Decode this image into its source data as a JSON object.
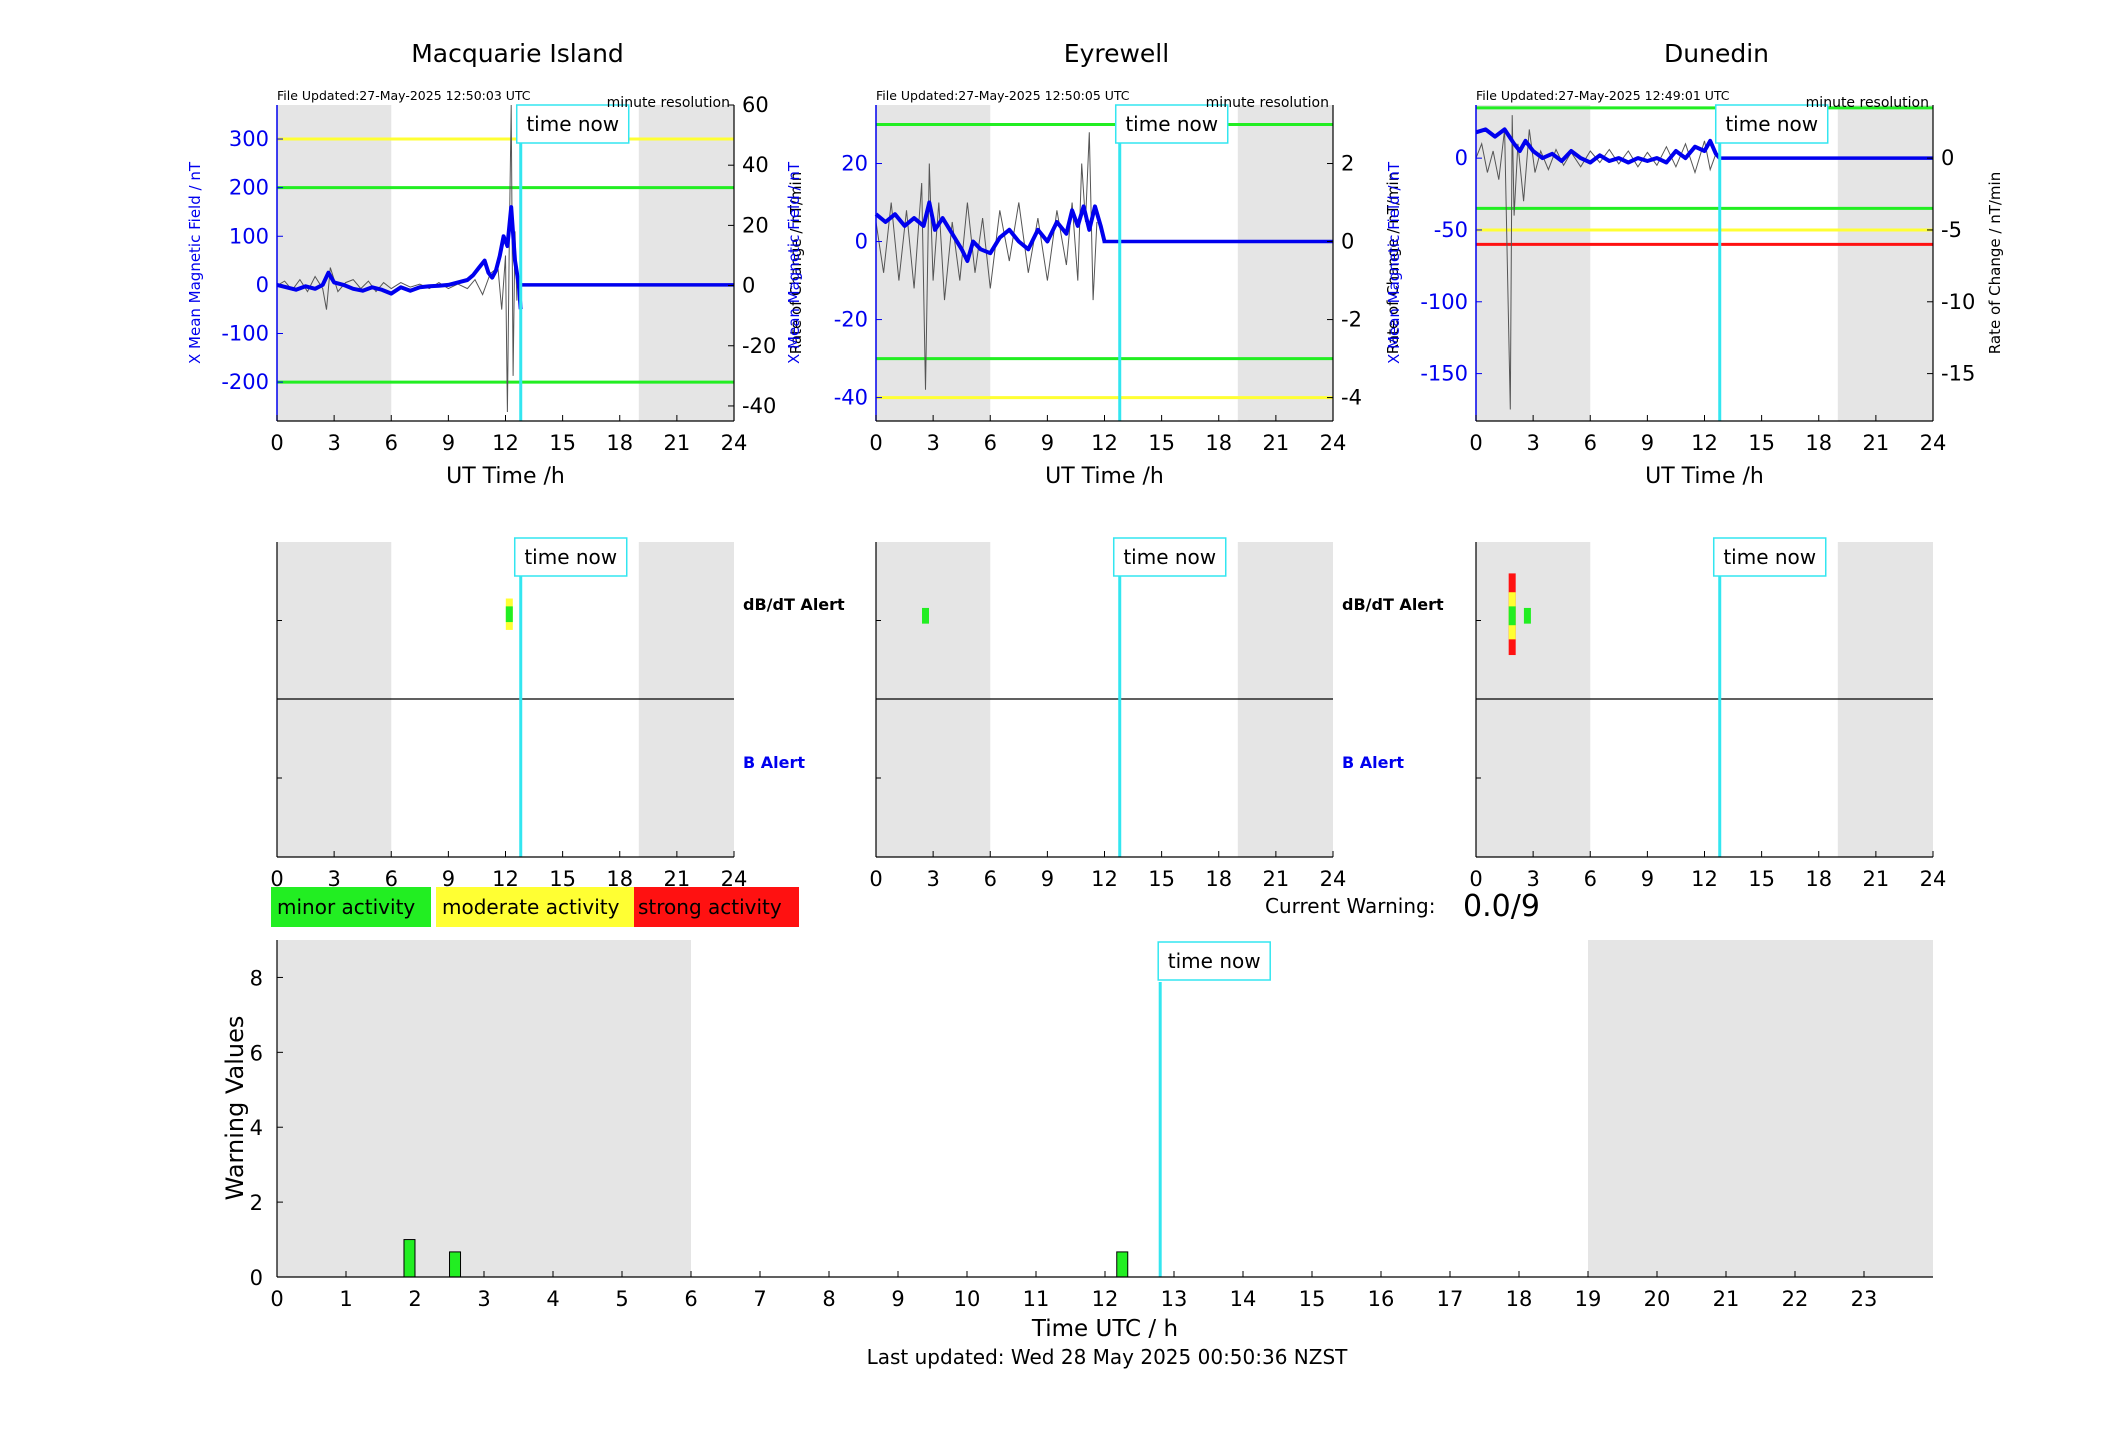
{
  "colors": {
    "blue": "#0000ee",
    "cyan": "#33e6f0",
    "green": "#22ee22",
    "yellow": "#ffff33",
    "red": "#ff1111",
    "night": "#e5e5e5",
    "grey_trace": "#555555"
  },
  "legend": {
    "minor": "minor activity",
    "moderate": "moderate activity",
    "strong": "strong activity"
  },
  "current_warning": {
    "label": "Current Warning:",
    "value": "0.0/9"
  },
  "alert_labels": {
    "dbdt": "dB/dT Alert",
    "b": "B Alert"
  },
  "time_now_label": "time now",
  "time_now_hour": 12.8,
  "footer": {
    "last_updated": "Last updated: Wed 28 May 2025 00:50:36 NZST"
  },
  "chart_data": [
    {
      "type": "line",
      "station": "Macquarie Island",
      "title": "Macquarie Island",
      "file_updated": "File Updated:27-May-2025 12:50:03 UTC",
      "resolution": "minute resolution",
      "xlabel": "UT Time /h",
      "ylabel_left": "X Mean Magnetic Field / nT",
      "ylabel_right": "Rate of Change / nT/min",
      "xlim": [
        0,
        24
      ],
      "xticks": [
        0,
        3,
        6,
        9,
        12,
        15,
        18,
        21,
        24
      ],
      "ylim": [
        -280,
        370
      ],
      "yticks": [
        -200,
        -100,
        0,
        100,
        200,
        300
      ],
      "y2lim": [
        -45,
        60
      ],
      "y2ticks": [
        -40,
        -20,
        0,
        20,
        40,
        60
      ],
      "night": [
        [
          0,
          6
        ],
        [
          19,
          24
        ]
      ],
      "threshold_lines": [
        {
          "value": 300,
          "color": "yellow"
        },
        {
          "value": 200,
          "color": "green"
        },
        {
          "value": -200,
          "color": "green"
        }
      ],
      "field_series": {
        "x": [
          0,
          0.5,
          1,
          1.5,
          2,
          2.4,
          2.7,
          3,
          3.5,
          4,
          4.5,
          5,
          5.5,
          6,
          6.5,
          7,
          7.5,
          8,
          8.5,
          9,
          9.5,
          10,
          10.3,
          10.6,
          10.9,
          11.1,
          11.3,
          11.5,
          11.7,
          11.9,
          12.1,
          12.3,
          12.5,
          12.7,
          12.8
        ],
        "y": [
          0,
          -5,
          -10,
          -3,
          -8,
          0,
          25,
          5,
          0,
          -8,
          -12,
          -5,
          -10,
          -18,
          -5,
          -12,
          -5,
          -3,
          -2,
          0,
          5,
          10,
          20,
          35,
          50,
          25,
          15,
          30,
          60,
          100,
          80,
          160,
          50,
          0,
          -50
        ]
      },
      "rate_series": {
        "x": [
          0,
          0.4,
          0.8,
          1.2,
          1.6,
          2,
          2.4,
          2.6,
          2.8,
          3.2,
          3.6,
          4,
          4.4,
          4.8,
          5.2,
          5.6,
          6,
          6.5,
          7,
          7.5,
          8,
          8.5,
          9,
          9.5,
          10,
          10.4,
          10.8,
          11.2,
          11.6,
          11.8,
          12,
          12.1,
          12.2,
          12.3,
          12.4,
          12.5,
          12.6
        ],
        "y": [
          0,
          1.5,
          -1.5,
          2,
          -2,
          3,
          -1,
          -8,
          6,
          -2,
          1,
          2,
          -1,
          1.5,
          -2,
          1,
          -1,
          1,
          -0.5,
          0.5,
          -1,
          1,
          -1,
          0.5,
          -1,
          2,
          -3,
          4,
          6,
          -8,
          10,
          -42,
          15,
          60,
          -30,
          18,
          -5
        ]
      },
      "flat_series": {
        "x": [
          12.8,
          24
        ],
        "y": [
          0,
          0
        ]
      }
    },
    {
      "type": "line",
      "station": "Eyrewell",
      "title": "Eyrewell",
      "file_updated": "File Updated:27-May-2025 12:50:05 UTC",
      "resolution": "minute resolution",
      "xlabel": "UT Time /h",
      "ylabel_left": "X Mean Magnetic Field / nT",
      "ylabel_right": "Rate of Change / nT/min",
      "xlim": [
        0,
        24
      ],
      "xticks": [
        0,
        3,
        6,
        9,
        12,
        15,
        18,
        21,
        24
      ],
      "ylim": [
        -46,
        35
      ],
      "yticks": [
        -40,
        -20,
        0,
        20
      ],
      "y2lim": [
        -4.6,
        3.5
      ],
      "y2ticks": [
        -4,
        -2,
        0,
        2
      ],
      "night": [
        [
          0,
          6
        ],
        [
          19,
          24
        ]
      ],
      "threshold_lines": [
        {
          "value": 30,
          "color": "green"
        },
        {
          "value": -30,
          "color": "green"
        },
        {
          "value": -40,
          "color": "yellow"
        }
      ],
      "field_series": {
        "x": [
          0,
          0.5,
          1,
          1.5,
          2,
          2.5,
          2.8,
          3.1,
          3.5,
          4,
          4.5,
          4.8,
          5.1,
          5.5,
          6,
          6.5,
          7,
          7.5,
          8,
          8.5,
          9,
          9.5,
          10,
          10.3,
          10.6,
          10.9,
          11.2,
          11.5,
          11.8,
          12
        ],
        "y": [
          7,
          5,
          7,
          4,
          6,
          4,
          10,
          3,
          6,
          2,
          -2,
          -5,
          0,
          -2,
          -3,
          1,
          3,
          0,
          -2,
          3,
          0,
          5,
          2,
          8,
          4,
          9,
          3,
          9,
          4,
          0
        ]
      },
      "rate_series": {
        "x": [
          0,
          0.4,
          0.8,
          1.2,
          1.6,
          2,
          2.4,
          2.6,
          2.8,
          3,
          3.3,
          3.6,
          4,
          4.4,
          4.8,
          5.2,
          5.6,
          6,
          6.5,
          7,
          7.5,
          8,
          8.5,
          9,
          9.5,
          10,
          10.3,
          10.6,
          10.8,
          11,
          11.2,
          11.4,
          11.6
        ],
        "y": [
          0.5,
          -0.8,
          1,
          -1,
          0.8,
          -1.2,
          1.5,
          -3.8,
          2,
          -1,
          1,
          -1.5,
          0.5,
          -1,
          1,
          -0.8,
          0.6,
          -1.2,
          0.8,
          -0.5,
          1,
          -0.8,
          0.6,
          -1,
          0.8,
          -0.6,
          1,
          -1,
          2,
          0.5,
          2.8,
          -1.5,
          0.5
        ]
      },
      "flat_series": {
        "x": [
          11.9,
          24
        ],
        "y": [
          0,
          0
        ]
      }
    },
    {
      "type": "line",
      "station": "Dunedin",
      "title": "Dunedin",
      "file_updated": "File Updated:27-May-2025 12:49:01 UTC",
      "resolution": "minute resolution",
      "xlabel": "UT Time /h",
      "ylabel_left": "X Mean Magnetic Field / nT",
      "ylabel_right": "Rate of Change / nT/min",
      "xlim": [
        0,
        24
      ],
      "xticks": [
        0,
        3,
        6,
        9,
        12,
        15,
        18,
        21,
        24
      ],
      "ylim": [
        -183,
        37
      ],
      "yticks": [
        -150,
        -100,
        -50,
        0
      ],
      "y2lim": [
        -18.3,
        3.7
      ],
      "y2ticks": [
        -15,
        -10,
        -5,
        0
      ],
      "night": [
        [
          0,
          6
        ],
        [
          19,
          24
        ]
      ],
      "threshold_lines": [
        {
          "value": 35,
          "color": "green"
        },
        {
          "value": -35,
          "color": "green"
        },
        {
          "value": -50,
          "color": "yellow"
        },
        {
          "value": -60,
          "color": "red"
        }
      ],
      "field_series": {
        "x": [
          0,
          0.5,
          1,
          1.5,
          2,
          2.3,
          2.6,
          3,
          3.5,
          4,
          4.5,
          5,
          5.5,
          6,
          6.5,
          7,
          7.5,
          8,
          8.5,
          9,
          9.5,
          10,
          10.5,
          11,
          11.5,
          12,
          12.3,
          12.6,
          12.8
        ],
        "y": [
          18,
          20,
          15,
          20,
          10,
          5,
          12,
          5,
          0,
          3,
          -2,
          5,
          0,
          -3,
          2,
          -2,
          0,
          -3,
          0,
          -2,
          0,
          -3,
          5,
          0,
          8,
          5,
          12,
          3,
          0
        ]
      },
      "rate_series": {
        "x": [
          0,
          0.3,
          0.6,
          0.9,
          1.2,
          1.5,
          1.8,
          1.9,
          2,
          2.2,
          2.5,
          2.8,
          3.1,
          3.4,
          3.8,
          4.2,
          4.6,
          5,
          5.5,
          6,
          6.5,
          7,
          7.5,
          8,
          8.5,
          9,
          9.5,
          10,
          10.5,
          11,
          11.5,
          12,
          12.3,
          12.6
        ],
        "y": [
          0,
          1,
          -1,
          0.5,
          -1.5,
          2,
          -17.5,
          3,
          -4,
          1,
          -3,
          2,
          -1,
          0.5,
          -0.8,
          0.6,
          -0.5,
          0.4,
          -0.6,
          0.5,
          -0.3,
          0.6,
          -0.4,
          0.5,
          -0.6,
          0.4,
          -0.5,
          0.8,
          -0.6,
          1,
          -1,
          1.2,
          -0.8,
          0.3
        ]
      },
      "flat_series": {
        "x": [
          12.8,
          24
        ],
        "y": [
          0,
          0
        ]
      }
    },
    {
      "type": "bar",
      "name": "alert-timeline",
      "stations": [
        "Macquarie Island",
        "Eyrewell",
        "Dunedin"
      ],
      "xlim": [
        0,
        24
      ],
      "xticks": [
        0,
        3,
        6,
        9,
        12,
        15,
        18,
        21,
        24
      ],
      "night": [
        [
          0,
          6
        ],
        [
          19,
          24
        ]
      ],
      "dbdt_alerts": [
        [
          {
            "hour": 12.2,
            "lo": 0.36,
            "hi": 0.56,
            "color": "yellow"
          },
          {
            "hour": 12.2,
            "lo": 0.41,
            "hi": 0.51,
            "color": "green"
          }
        ],
        [
          {
            "hour": 2.6,
            "lo": 0.42,
            "hi": 0.52,
            "color": "green"
          }
        ],
        [
          {
            "hour": 1.9,
            "lo": 0.2,
            "hi": 0.72,
            "color": "red"
          },
          {
            "hour": 1.9,
            "lo": 0.32,
            "hi": 0.62,
            "color": "yellow"
          },
          {
            "hour": 1.9,
            "lo": 0.41,
            "hi": 0.53,
            "color": "green"
          },
          {
            "hour": 2.7,
            "lo": 0.42,
            "hi": 0.52,
            "color": "green"
          }
        ]
      ]
    },
    {
      "type": "bar",
      "name": "warning-values",
      "ylabel": "Warning Values",
      "xlabel": "Time UTC / h",
      "xlim": [
        0,
        24
      ],
      "xticks": [
        0,
        1,
        2,
        3,
        4,
        5,
        6,
        7,
        8,
        9,
        10,
        11,
        12,
        13,
        14,
        15,
        16,
        17,
        18,
        19,
        20,
        21,
        22,
        23
      ],
      "ylim": [
        0,
        9
      ],
      "yticks": [
        0,
        2,
        4,
        6,
        8
      ],
      "night": [
        [
          0,
          6
        ],
        [
          19,
          24
        ]
      ],
      "bars": [
        {
          "x": 1.92,
          "value": 1.0
        },
        {
          "x": 2.58,
          "value": 0.67
        },
        {
          "x": 12.25,
          "value": 0.67
        }
      ]
    }
  ]
}
